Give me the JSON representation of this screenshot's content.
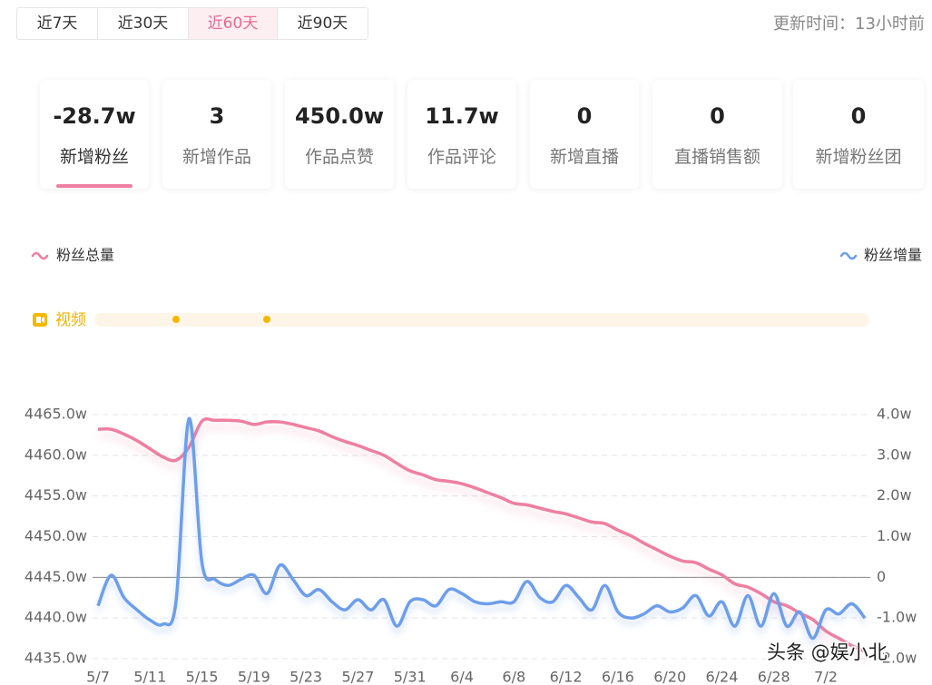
{
  "tabs": [
    "近7天",
    "近30天",
    "近60天",
    "近90天"
  ],
  "update_time": "更新时间：13小时前",
  "stats": [
    {
      "value": "-28.7w",
      "label": "新增粉丝"
    },
    {
      "value": "3",
      "label": "新增作品"
    },
    {
      "value": "450.0w",
      "label": "作品点赞"
    },
    {
      "value": "11.7w",
      "label": "作品评论"
    },
    {
      "value": "0",
      "label": "新增直播"
    },
    {
      "value": "0",
      "label": "直播销售额"
    },
    {
      "value": "0",
      "label": "新增粉丝团"
    }
  ],
  "video_label": "视频",
  "watermark": "头条 @娱小北",
  "chart_data": {
    "type": "line",
    "categories": [
      "5/7",
      null,
      null,
      null,
      "5/11",
      null,
      null,
      null,
      "5/15",
      null,
      null,
      null,
      "5/19",
      null,
      null,
      null,
      "5/23",
      null,
      null,
      null,
      "5/27",
      null,
      null,
      null,
      "5/31",
      null,
      null,
      null,
      "6/4",
      null,
      null,
      null,
      "6/8",
      null,
      null,
      null,
      "6/12",
      null,
      null,
      null,
      "6/16",
      null,
      null,
      null,
      "6/20",
      null,
      null,
      null,
      "6/24",
      null,
      null,
      null,
      "6/28",
      null,
      null,
      null,
      "7/2",
      null,
      null,
      null
    ],
    "series": [
      {
        "name": "粉丝总量",
        "color": "#ee7fa0",
        "axis": "y",
        "values": [
          4463.2,
          4463.2,
          4462.6,
          4461.8,
          4460.8,
          4459.8,
          4459.4,
          4461.0,
          4464.2,
          4464.3,
          4464.3,
          4464.2,
          4463.8,
          4464.1,
          4464.1,
          4463.8,
          4463.4,
          4463.0,
          4462.3,
          4461.7,
          4461.2,
          4460.6,
          4460.0,
          4459.0,
          4458.1,
          4457.6,
          4457.0,
          4456.8,
          4456.5,
          4456.0,
          4455.4,
          4454.8,
          4454.1,
          4453.9,
          4453.5,
          4453.1,
          4452.8,
          4452.3,
          4451.8,
          4451.6,
          4450.8,
          4450.1,
          4449.2,
          4448.4,
          4447.6,
          4447.0,
          4446.8,
          4446.0,
          4445.3,
          4444.2,
          4443.8,
          4443.0,
          4442.0,
          4441.5,
          4440.6,
          4439.8,
          4438.4,
          4437.5,
          4436.6,
          4435.9
        ]
      },
      {
        "name": "粉丝增量",
        "color": "#6d9eeb",
        "axis": "y2",
        "values": [
          -0.7,
          0.05,
          -0.5,
          -0.8,
          -1.05,
          -1.15,
          -0.6,
          3.9,
          0.35,
          -0.05,
          -0.2,
          -0.05,
          0.05,
          -0.4,
          0.3,
          -0.05,
          -0.45,
          -0.3,
          -0.6,
          -0.8,
          -0.55,
          -0.8,
          -0.55,
          -1.2,
          -0.6,
          -0.55,
          -0.7,
          -0.3,
          -0.4,
          -0.6,
          -0.65,
          -0.6,
          -0.6,
          -0.1,
          -0.5,
          -0.6,
          -0.2,
          -0.5,
          -0.8,
          -0.2,
          -0.85,
          -1.0,
          -0.9,
          -0.7,
          -0.85,
          -0.75,
          -0.45,
          -0.95,
          -0.6,
          -1.2,
          -0.45,
          -1.2,
          -0.4,
          -1.2,
          -0.85,
          -1.5,
          -0.8,
          -0.9,
          -0.65,
          -1.0
        ]
      }
    ],
    "ylim": [
      4435,
      4465
    ],
    "yticks": [
      {
        "value": 4435,
        "label": "4435.0w"
      },
      {
        "value": 4440,
        "label": "4440.0w"
      },
      {
        "value": 4445,
        "label": "4445.0w"
      },
      {
        "value": 4450,
        "label": "4450.0w"
      },
      {
        "value": 4455,
        "label": "4455.0w"
      },
      {
        "value": 4460,
        "label": "4460.0w"
      },
      {
        "value": 4465,
        "label": "4465.0w"
      }
    ],
    "y2lim": [
      -2,
      4
    ],
    "y2ticks": [
      {
        "value": -2,
        "label": "-2.0w"
      },
      {
        "value": -1,
        "label": "-1.0w"
      },
      0,
      {
        "value": 1,
        "label": "1.0w"
      },
      {
        "value": 2,
        "label": "2.0w"
      },
      {
        "value": 3,
        "label": "3.0w"
      },
      {
        "value": 4,
        "label": "4.0w"
      }
    ],
    "grid": true
  }
}
